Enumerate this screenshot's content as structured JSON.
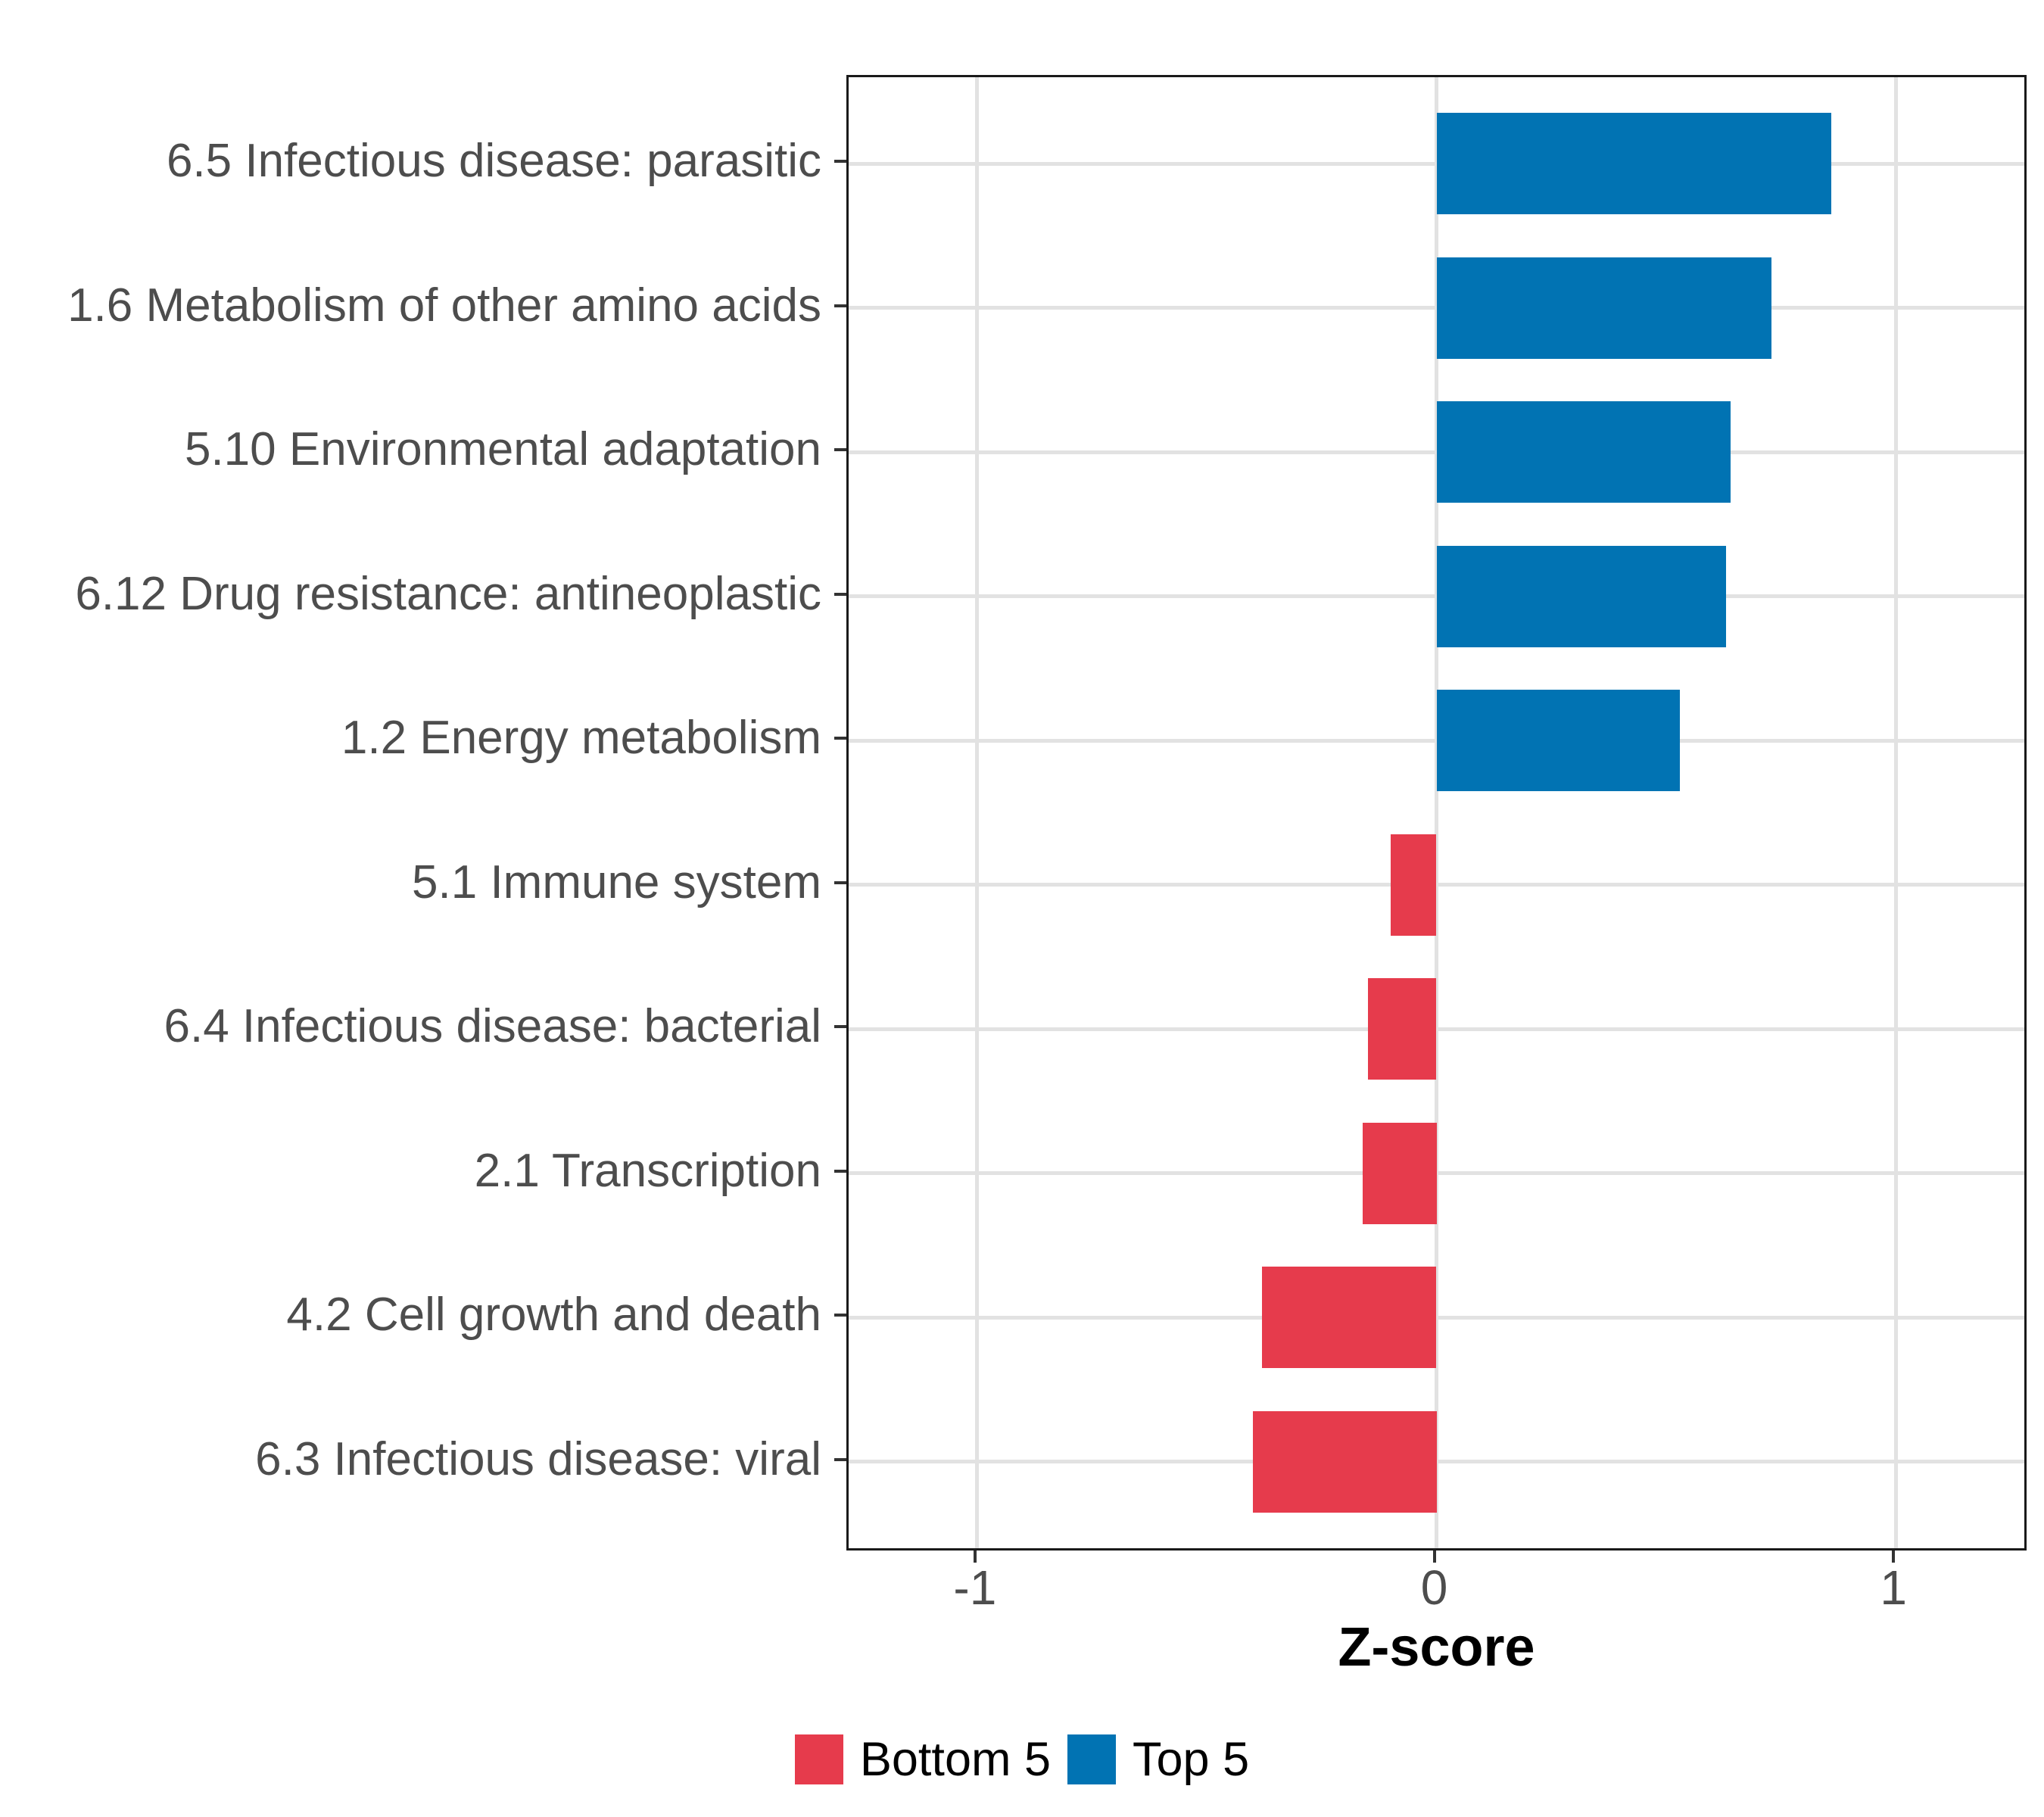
{
  "chart_data": {
    "type": "bar",
    "orientation": "horizontal",
    "title": "",
    "xlabel": "Z-score",
    "ylabel": "",
    "categories": [
      "6.5 Infectious disease: parasitic",
      "1.6 Metabolism of other amino acids",
      "5.10 Environmental adaptation",
      "6.12 Drug resistance: antineoplastic",
      "1.2 Energy metabolism",
      "5.1 Immune system",
      "6.4 Infectious disease: bacterial",
      "2.1 Transcription",
      "4.2 Cell growth and death",
      "6.3 Infectious disease: viral"
    ],
    "values": [
      0.86,
      0.73,
      0.64,
      0.63,
      0.53,
      -0.1,
      -0.15,
      -0.16,
      -0.38,
      -0.4
    ],
    "groups": [
      "Top 5",
      "Top 5",
      "Top 5",
      "Top 5",
      "Top 5",
      "Bottom 5",
      "Bottom 5",
      "Bottom 5",
      "Bottom 5",
      "Bottom 5"
    ],
    "xlim": [
      -1.28,
      1.28
    ],
    "x_ticks": [
      -1,
      0,
      1
    ],
    "x_tick_labels": [
      "-1",
      "0",
      "1"
    ],
    "grid": "major-only",
    "bar_width_fraction": 0.7,
    "legend_position": "bottom",
    "legend": {
      "entries": [
        {
          "label": "Bottom 5",
          "color": "#E63B4C"
        },
        {
          "label": "Top 5",
          "color": "#0173B3"
        }
      ]
    },
    "colors": {
      "top5_blue": "#0173B3",
      "bottom5_red": "#E63B4C"
    }
  },
  "style": {
    "axis_text_color": "#4D4D4D",
    "grid_color": "#E2E2E2",
    "panel_border_color": "#1A1A1A",
    "tick_color": "#333333"
  }
}
